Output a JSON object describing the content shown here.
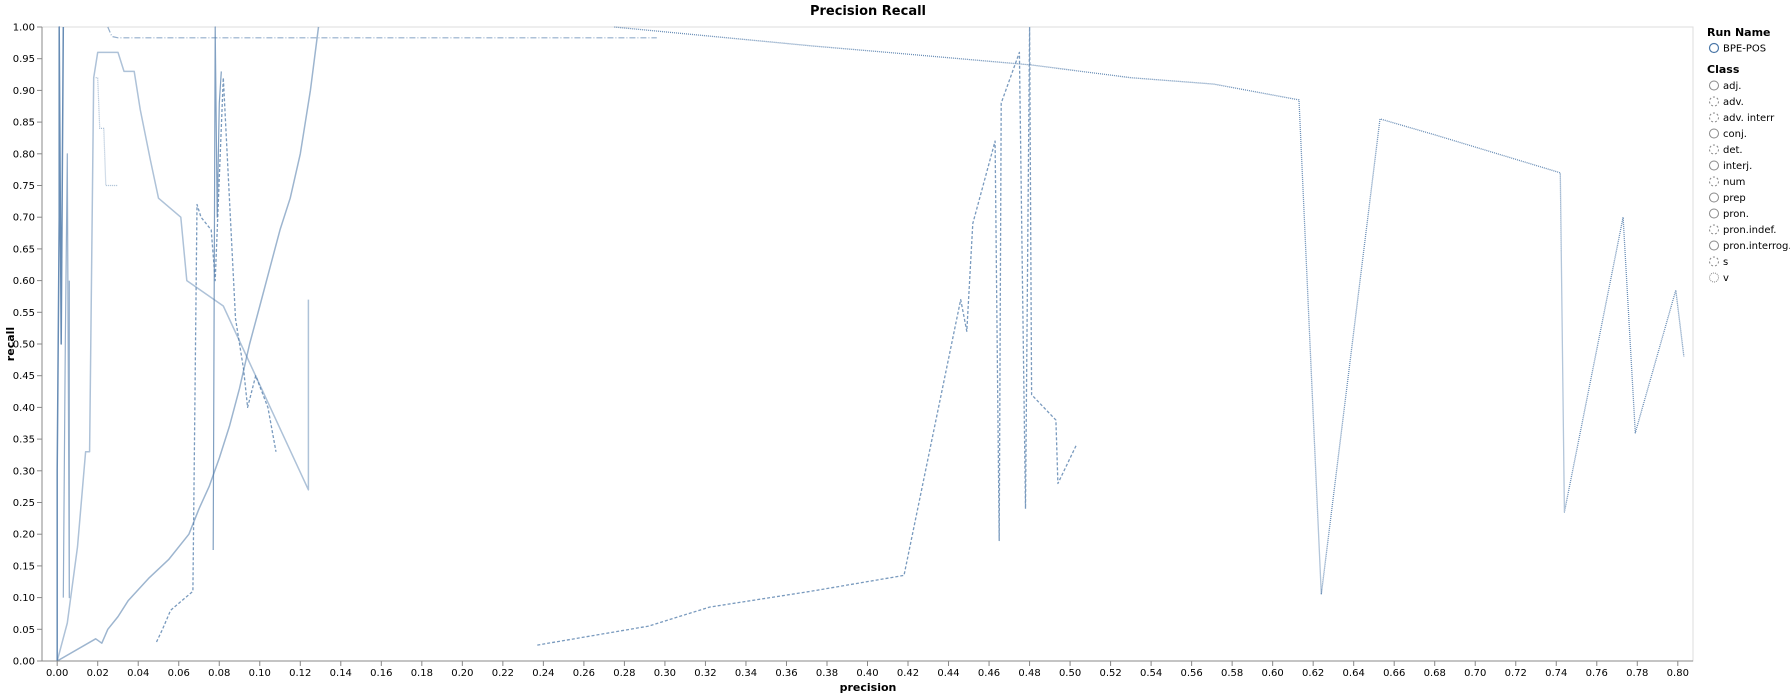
{
  "chart_data": {
    "type": "line",
    "title": "Precision Recall",
    "xlabel": "precision",
    "ylabel": "recall",
    "xlim": [
      -0.0075,
      0.8075
    ],
    "ylim": [
      0,
      1
    ],
    "x_ticks": [
      "0.00",
      "0.02",
      "0.04",
      "0.06",
      "0.08",
      "0.10",
      "0.12",
      "0.14",
      "0.16",
      "0.18",
      "0.20",
      "0.22",
      "0.24",
      "0.26",
      "0.28",
      "0.30",
      "0.32",
      "0.34",
      "0.36",
      "0.38",
      "0.40",
      "0.42",
      "0.44",
      "0.46",
      "0.48",
      "0.50",
      "0.52",
      "0.54",
      "0.56",
      "0.58",
      "0.60",
      "0.62",
      "0.64",
      "0.66",
      "0.68",
      "0.70",
      "0.72",
      "0.74",
      "0.76",
      "0.78",
      "0.80"
    ],
    "y_ticks": [
      "0.00",
      "0.05",
      "0.10",
      "0.15",
      "0.20",
      "0.25",
      "0.30",
      "0.35",
      "0.40",
      "0.45",
      "0.50",
      "0.55",
      "0.60",
      "0.65",
      "0.70",
      "0.75",
      "0.80",
      "0.85",
      "0.90",
      "0.95",
      "1.00"
    ],
    "grid": false,
    "legend_placement": "right",
    "legend": {
      "run_title": "Run Name",
      "runs": [
        {
          "label": "BPE-POS"
        }
      ],
      "class_title": "Class",
      "classes": [
        {
          "label": "adj.",
          "dash": ""
        },
        {
          "label": "adv.",
          "dash": "2,2"
        },
        {
          "label": "adv. interr",
          "dash": "2,2"
        },
        {
          "label": "conj.",
          "dash": ""
        },
        {
          "label": "det.",
          "dash": "2,2"
        },
        {
          "label": "interj.",
          "dash": ""
        },
        {
          "label": "num",
          "dash": "2,2"
        },
        {
          "label": "prep",
          "dash": ""
        },
        {
          "label": "pron.",
          "dash": ""
        },
        {
          "label": "pron.indef.",
          "dash": "2,2"
        },
        {
          "label": "pron.interrog.",
          "dash": ""
        },
        {
          "label": "s",
          "dash": "2,2"
        },
        {
          "label": "v",
          "dash": "1,1"
        }
      ]
    },
    "series": [
      {
        "color": "#4c78a8",
        "opacity": 0.85,
        "width": 1.5,
        "dash": "",
        "points": [
          [
            0.0,
            0.0
          ],
          [
            0.0,
            0.3
          ],
          [
            0.001,
            0.7
          ],
          [
            0.001,
            1.0
          ],
          [
            0.002,
            0.5
          ],
          [
            0.003,
            1.0
          ]
        ]
      },
      {
        "color": "#4c78a8",
        "opacity": 0.55,
        "width": 1.5,
        "dash": "",
        "points": [
          [
            0.0,
            0.0
          ],
          [
            0.019,
            0.035
          ],
          [
            0.022,
            0.028
          ],
          [
            0.025,
            0.05
          ],
          [
            0.03,
            0.07
          ],
          [
            0.035,
            0.095
          ],
          [
            0.045,
            0.13
          ],
          [
            0.055,
            0.16
          ],
          [
            0.065,
            0.2
          ],
          [
            0.07,
            0.24
          ],
          [
            0.075,
            0.275
          ],
          [
            0.08,
            0.32
          ],
          [
            0.085,
            0.37
          ],
          [
            0.09,
            0.43
          ],
          [
            0.095,
            0.5
          ],
          [
            0.1,
            0.56
          ],
          [
            0.105,
            0.62
          ],
          [
            0.11,
            0.68
          ],
          [
            0.115,
            0.73
          ],
          [
            0.12,
            0.8
          ],
          [
            0.125,
            0.9
          ],
          [
            0.129,
            1.0
          ]
        ]
      },
      {
        "color": "#4c78a8",
        "opacity": 0.45,
        "width": 1.5,
        "dash": "",
        "points": [
          [
            0.0,
            0.0
          ],
          [
            0.005,
            0.06
          ],
          [
            0.01,
            0.18
          ],
          [
            0.014,
            0.33
          ],
          [
            0.016,
            0.33
          ],
          [
            0.018,
            0.92
          ],
          [
            0.02,
            0.96
          ],
          [
            0.03,
            0.96
          ],
          [
            0.033,
            0.93
          ],
          [
            0.038,
            0.93
          ],
          [
            0.041,
            0.87
          ],
          [
            0.046,
            0.79
          ],
          [
            0.05,
            0.73
          ],
          [
            0.061,
            0.7
          ],
          [
            0.064,
            0.6
          ],
          [
            0.082,
            0.56
          ],
          [
            0.124,
            0.27
          ],
          [
            0.124,
            0.57
          ]
        ]
      },
      {
        "color": "#4c78a8",
        "opacity": 0.6,
        "width": 1.2,
        "dash": "",
        "points": [
          [
            0.003,
            0.1
          ],
          [
            0.004,
            0.5
          ],
          [
            0.005,
            0.8
          ],
          [
            0.006,
            0.1
          ],
          [
            0.006,
            0.6
          ]
        ]
      },
      {
        "color": "#4c78a8",
        "opacity": 0.7,
        "width": 1.2,
        "dash": "",
        "points": [
          [
            0.077,
            0.175
          ],
          [
            0.078,
            1.0
          ],
          [
            0.079,
            0.7
          ],
          [
            0.08,
            0.88
          ],
          [
            0.081,
            0.93
          ]
        ]
      },
      {
        "color": "#4c78a8",
        "opacity": 0.75,
        "width": 1.3,
        "dash": "3,2",
        "points": [
          [
            0.049,
            0.03
          ],
          [
            0.052,
            0.05
          ],
          [
            0.056,
            0.08
          ],
          [
            0.067,
            0.11
          ],
          [
            0.069,
            0.72
          ],
          [
            0.071,
            0.7
          ],
          [
            0.076,
            0.68
          ],
          [
            0.078,
            0.6
          ],
          [
            0.082,
            0.92
          ],
          [
            0.088,
            0.54
          ],
          [
            0.092,
            0.46
          ],
          [
            0.094,
            0.4
          ],
          [
            0.098,
            0.45
          ],
          [
            0.104,
            0.4
          ],
          [
            0.108,
            0.33
          ]
        ]
      },
      {
        "color": "#4c78a8",
        "opacity": 0.75,
        "width": 1.3,
        "dash": "3,2",
        "points": [
          [
            0.237,
            0.025
          ],
          [
            0.292,
            0.055
          ],
          [
            0.322,
            0.085
          ],
          [
            0.372,
            0.11
          ],
          [
            0.418,
            0.135
          ],
          [
            0.446,
            0.57
          ],
          [
            0.449,
            0.52
          ],
          [
            0.452,
            0.69
          ],
          [
            0.463,
            0.82
          ],
          [
            0.465,
            0.19
          ],
          [
            0.466,
            0.88
          ],
          [
            0.475,
            0.96
          ],
          [
            0.478,
            0.24
          ],
          [
            0.48,
            1.0
          ],
          [
            0.481,
            0.42
          ],
          [
            0.493,
            0.38
          ],
          [
            0.494,
            0.28
          ],
          [
            0.503,
            0.34
          ]
        ]
      },
      {
        "color": "#4c78a8",
        "opacity": 0.85,
        "width": 1.3,
        "dash": "1,1",
        "points": [
          [
            0.275,
            1.0
          ],
          [
            0.373,
            0.97
          ],
          [
            0.41,
            0.96
          ],
          [
            0.481,
            0.94
          ],
          [
            0.53,
            0.92
          ],
          [
            0.571,
            0.91
          ],
          [
            0.613,
            0.885
          ],
          [
            0.624,
            0.105
          ],
          [
            0.653,
            0.855
          ],
          [
            0.68,
            0.83
          ],
          [
            0.742,
            0.77
          ],
          [
            0.744,
            0.235
          ],
          [
            0.773,
            0.7
          ],
          [
            0.779,
            0.36
          ],
          [
            0.799,
            0.585
          ],
          [
            0.803,
            0.48
          ]
        ]
      },
      {
        "color": "#4c78a8",
        "opacity": 0.6,
        "width": 1.2,
        "dash": "6,2,1,2",
        "points": [
          [
            0.025,
            1.0
          ],
          [
            0.027,
            0.985
          ],
          [
            0.03,
            0.983
          ],
          [
            0.296,
            0.983
          ]
        ]
      },
      {
        "color": "#4c78a8",
        "opacity": 0.5,
        "width": 1.2,
        "dash": "1,1",
        "points": [
          [
            0.019,
            0.92
          ],
          [
            0.02,
            0.92
          ],
          [
            0.021,
            0.84
          ],
          [
            0.023,
            0.84
          ],
          [
            0.024,
            0.75
          ],
          [
            0.03,
            0.75
          ]
        ]
      }
    ]
  }
}
